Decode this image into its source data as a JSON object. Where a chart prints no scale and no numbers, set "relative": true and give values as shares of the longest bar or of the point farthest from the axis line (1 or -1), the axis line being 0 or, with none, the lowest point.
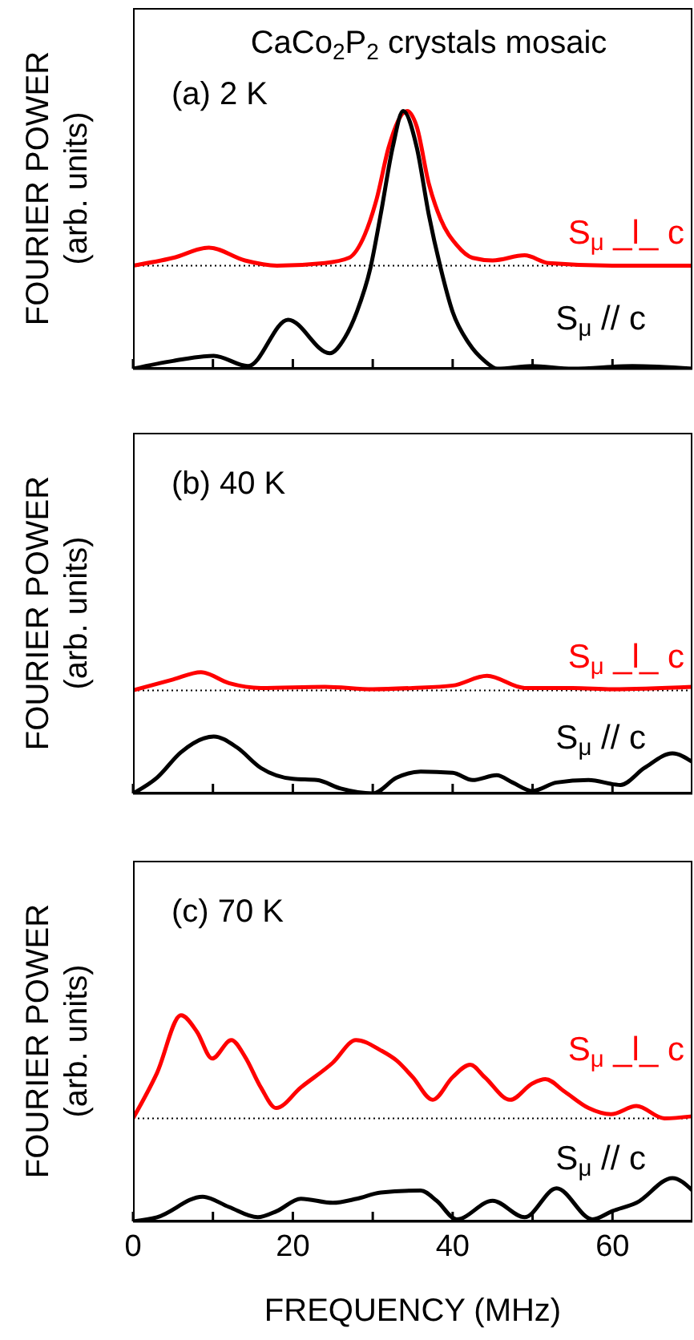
{
  "chart_data": [
    {
      "type": "line",
      "relative": true,
      "title": "CaCo$_{2}$P$_{2}$ crystals mosaic",
      "ylabel": "FOURIER POWER (arb. units)",
      "annotations": [
        "(a) 2 K"
      ],
      "xlim": [
        0,
        70
      ],
      "xticks": [
        0,
        {
          "value": 10,
          "label": null
        },
        20,
        {
          "value": 30,
          "label": null
        },
        40,
        {
          "value": 50,
          "label": null
        },
        60
      ],
      "tick_labels": false,
      "grid": false,
      "legend": false,
      "marker": "none",
      "line_style": "solid",
      "ref_lines": [
        {
          "axis": "y",
          "value": 0.4,
          "color": "#000000",
          "line_style": "dotted"
        }
      ],
      "series": [
        {
          "name": "S$_{μ}$ _l_ c",
          "color": "#ff0000",
          "x": [
            0,
            5,
            9.5,
            14,
            18,
            24,
            27,
            29,
            30.5,
            32,
            34.3,
            35.5,
            37,
            38.5,
            40.5,
            42.5,
            45,
            49,
            52,
            60,
            70
          ],
          "values": [
            0.4,
            0.43,
            0.47,
            0.42,
            0.4,
            0.41,
            0.43,
            0.52,
            0.66,
            0.86,
            1,
            0.94,
            0.72,
            0.58,
            0.48,
            0.43,
            0.42,
            0.44,
            0.41,
            0.4,
            0.4
          ]
        },
        {
          "name": "S$_{μ}$ // c",
          "color": "#000000",
          "x": [
            0,
            5,
            10.1,
            14.4,
            19.4,
            24.6,
            26.5,
            28,
            29.7,
            31,
            32.5,
            33.8,
            35.5,
            37,
            38.5,
            40,
            42,
            44,
            45.6,
            49.9,
            55,
            62.5,
            70
          ],
          "values": [
            0,
            0.03,
            0.05,
            0.01,
            0.19,
            0.06,
            0.12,
            0.22,
            0.39,
            0.6,
            0.86,
            1,
            0.86,
            0.6,
            0.39,
            0.22,
            0.1,
            0.03,
            0,
            0.01,
            0,
            0.01,
            0
          ]
        }
      ]
    },
    {
      "type": "line",
      "relative": true,
      "ylabel": "FOURIER POWER (arb. units)",
      "annotations": [
        "(b) 40 K"
      ],
      "xlim": [
        0,
        70
      ],
      "xticks": [
        0,
        {
          "value": 10,
          "label": null
        },
        20,
        {
          "value": 30,
          "label": null
        },
        40,
        {
          "value": 50,
          "label": null
        },
        60
      ],
      "tick_labels": false,
      "grid": false,
      "legend": false,
      "marker": "none",
      "line_style": "solid",
      "ref_lines": [
        {
          "axis": "y",
          "value": 0.85,
          "color": "#000000",
          "line_style": "dotted"
        }
      ],
      "series": [
        {
          "name": "S$_{μ}$ _l_ c",
          "color": "#ff0000",
          "x": [
            0,
            5,
            8.5,
            12,
            16,
            24,
            30,
            35,
            40,
            44.3,
            49,
            55,
            60,
            70
          ],
          "values": [
            0.85,
            0.94,
            1,
            0.91,
            0.87,
            0.88,
            0.86,
            0.87,
            0.89,
            0.97,
            0.87,
            0.87,
            0.86,
            0.88
          ]
        },
        {
          "name": "S$_{μ}$ // c",
          "color": "#000000",
          "x": [
            0,
            3,
            6,
            10.1,
            13,
            16,
            20,
            23,
            26,
            30,
            33,
            36,
            40,
            42.5,
            45.5,
            47.5,
            50,
            53,
            57,
            61,
            64,
            67.5,
            70
          ],
          "values": [
            0,
            0.13,
            0.34,
            0.47,
            0.38,
            0.21,
            0.12,
            0.11,
            0.04,
            0,
            0.13,
            0.18,
            0.17,
            0.11,
            0.15,
            0.09,
            0.02,
            0.09,
            0.11,
            0.07,
            0.21,
            0.33,
            0.26
          ]
        }
      ]
    },
    {
      "type": "line",
      "relative": true,
      "ylabel": "FOURIER POWER (arb. units)",
      "xlabel": "FREQUENCY (MHz)",
      "annotations": [
        "(c) 70 K"
      ],
      "xlim": [
        0,
        70
      ],
      "xticks": [
        0,
        {
          "value": 10,
          "label": null
        },
        20,
        {
          "value": 30,
          "label": null
        },
        40,
        {
          "value": 50,
          "label": null
        },
        60
      ],
      "tick_labels": "x",
      "grid": false,
      "legend": false,
      "marker": "none",
      "line_style": "solid",
      "ref_lines": [
        {
          "axis": "y",
          "value": 0.5,
          "color": "#000000",
          "line_style": "dotted"
        }
      ],
      "series": [
        {
          "name": "S$_{μ}$ _l_ c",
          "color": "#ff0000",
          "x": [
            0,
            3,
            6,
            8,
            9.9,
            12.3,
            14,
            16,
            17.9,
            21,
            25,
            27.9,
            31,
            33,
            35,
            37.5,
            40,
            42.2,
            44,
            47.2,
            50,
            51.6,
            54,
            57,
            59.8,
            63,
            66.5,
            70
          ],
          "values": [
            0.5,
            0.72,
            1,
            0.92,
            0.79,
            0.88,
            0.8,
            0.65,
            0.55,
            0.65,
            0.77,
            0.88,
            0.83,
            0.78,
            0.7,
            0.59,
            0.7,
            0.76,
            0.7,
            0.59,
            0.67,
            0.69,
            0.63,
            0.55,
            0.52,
            0.56,
            0.5,
            0.51
          ]
        },
        {
          "name": "S$_{μ}$ // c",
          "color": "#000000",
          "x": [
            0,
            3,
            8.7,
            12,
            15.6,
            18,
            21,
            25,
            28,
            31,
            36,
            38,
            40.5,
            45,
            49,
            53,
            57.5,
            60,
            63,
            67.5,
            70
          ],
          "values": [
            0,
            0.02,
            0.12,
            0.07,
            0.02,
            0.05,
            0.11,
            0.09,
            0.11,
            0.14,
            0.15,
            0.1,
            0.01,
            0.1,
            0.02,
            0.16,
            0.01,
            0.05,
            0.09,
            0.21,
            0.15
          ]
        }
      ]
    }
  ]
}
